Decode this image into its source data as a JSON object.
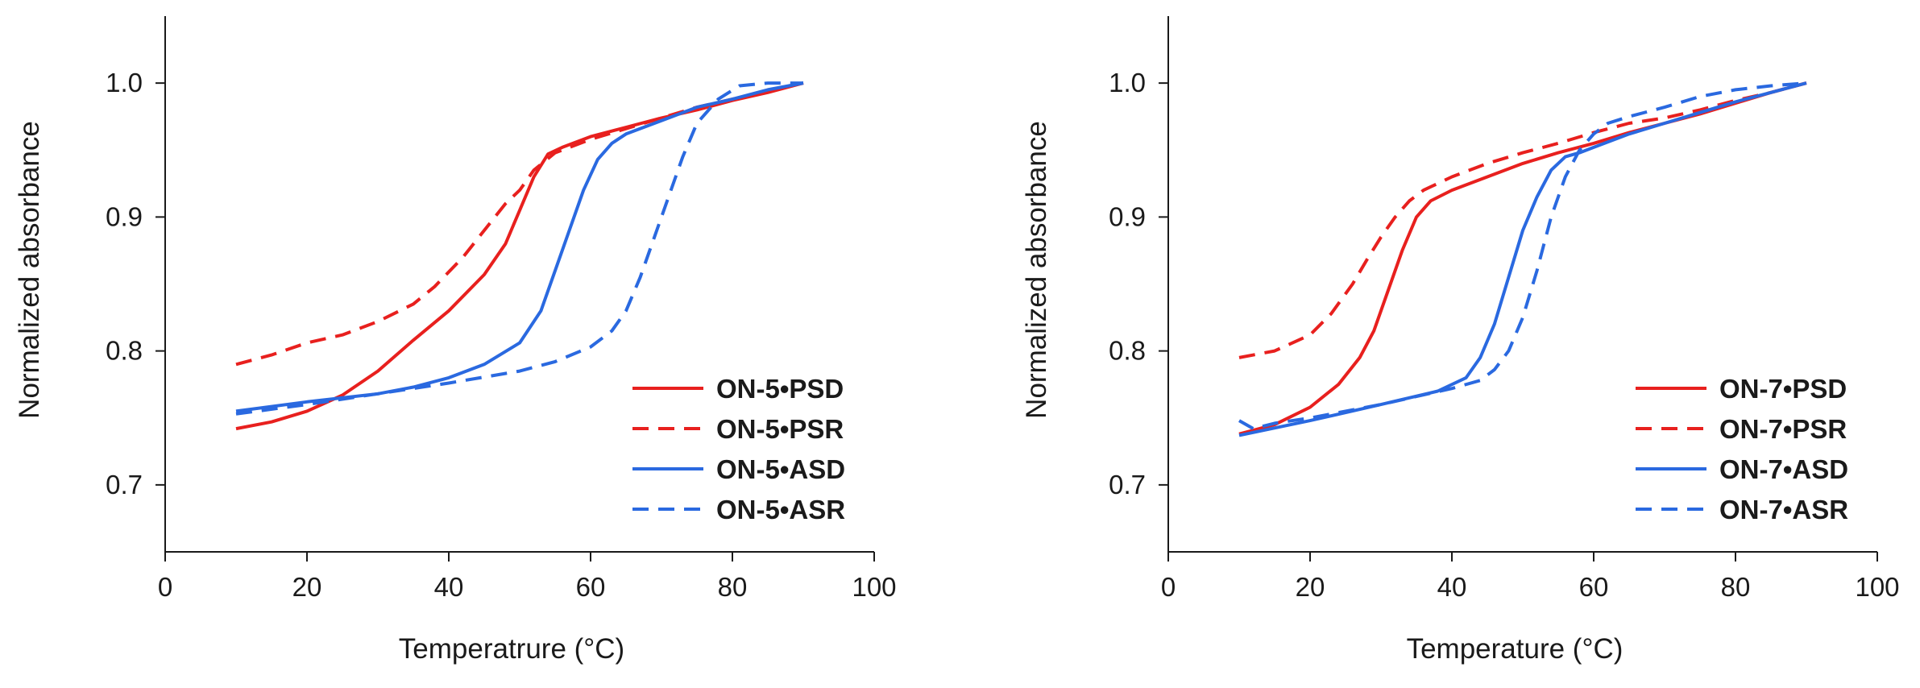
{
  "chart_data": [
    {
      "type": "line",
      "panel": "left",
      "title": "",
      "xlabel": "Temperatrure (°C)",
      "ylabel": "Normalized absorbance",
      "xlim": [
        0,
        100
      ],
      "ylim": [
        0.65,
        1.05
      ],
      "xticks": [
        0,
        20,
        40,
        60,
        80,
        100
      ],
      "xtick_labels": [
        "0",
        "20",
        "40",
        "60",
        "80",
        "100"
      ],
      "yticks": [
        0.7,
        0.8,
        0.9,
        1.0
      ],
      "ytick_labels": [
        "0.7",
        "0.8",
        "0.9",
        "1.0"
      ],
      "grid": false,
      "legend_position": "bottom-right",
      "series": [
        {
          "name": "ON-5•PSD",
          "color": "#e8201e",
          "dash": "solid",
          "x": [
            10,
            15,
            20,
            25,
            30,
            35,
            40,
            45,
            48,
            50,
            52,
            54,
            56,
            60,
            65,
            70,
            75,
            80,
            85,
            90
          ],
          "y": [
            0.742,
            0.747,
            0.755,
            0.767,
            0.785,
            0.808,
            0.83,
            0.857,
            0.88,
            0.905,
            0.93,
            0.947,
            0.952,
            0.96,
            0.967,
            0.974,
            0.98,
            0.987,
            0.993,
            1.0
          ]
        },
        {
          "name": "ON-5•PSR",
          "color": "#e8201e",
          "dash": "dashed",
          "x": [
            10,
            15,
            20,
            25,
            30,
            35,
            38,
            42,
            45,
            48,
            50,
            52,
            55,
            60,
            65,
            70,
            75,
            80,
            85,
            90
          ],
          "y": [
            0.79,
            0.797,
            0.806,
            0.812,
            0.822,
            0.835,
            0.848,
            0.87,
            0.89,
            0.91,
            0.92,
            0.935,
            0.948,
            0.958,
            0.966,
            0.974,
            0.982,
            0.988,
            0.994,
            1.0
          ]
        },
        {
          "name": "ON-5•ASD",
          "color": "#2a69e0",
          "dash": "solid",
          "x": [
            10,
            20,
            30,
            35,
            40,
            45,
            50,
            53,
            55,
            57,
            59,
            61,
            63,
            65,
            70,
            75,
            80,
            85,
            90
          ],
          "y": [
            0.755,
            0.762,
            0.768,
            0.773,
            0.78,
            0.79,
            0.806,
            0.83,
            0.86,
            0.89,
            0.92,
            0.943,
            0.955,
            0.962,
            0.972,
            0.982,
            0.988,
            0.995,
            1.0
          ]
        },
        {
          "name": "ON-5•ASR",
          "color": "#2a69e0",
          "dash": "dashed",
          "x": [
            10,
            20,
            30,
            40,
            50,
            55,
            60,
            63,
            65,
            67,
            69,
            71,
            73,
            75,
            78,
            81,
            85,
            90
          ],
          "y": [
            0.753,
            0.76,
            0.768,
            0.776,
            0.785,
            0.792,
            0.803,
            0.815,
            0.83,
            0.855,
            0.885,
            0.915,
            0.945,
            0.97,
            0.988,
            0.998,
            1.0,
            1.0
          ]
        }
      ]
    },
    {
      "type": "line",
      "panel": "right",
      "title": "",
      "xlabel": "Temperature (°C)",
      "ylabel": "Normalized absorbance",
      "xlim": [
        0,
        100
      ],
      "ylim": [
        0.65,
        1.05
      ],
      "xticks": [
        0,
        20,
        40,
        60,
        80,
        100
      ],
      "xtick_labels": [
        "0",
        "20",
        "40",
        "60",
        "80",
        "100"
      ],
      "yticks": [
        0.7,
        0.8,
        0.9,
        1.0
      ],
      "ytick_labels": [
        "0.7",
        "0.8",
        "0.9",
        "1.0"
      ],
      "grid": false,
      "legend_position": "bottom-right",
      "series": [
        {
          "name": "ON-7•PSD",
          "color": "#e8201e",
          "dash": "solid",
          "x": [
            10,
            15,
            20,
            24,
            27,
            29,
            31,
            33,
            35,
            37,
            40,
            45,
            50,
            55,
            60,
            65,
            70,
            75,
            80,
            85,
            90
          ],
          "y": [
            0.738,
            0.745,
            0.758,
            0.775,
            0.795,
            0.815,
            0.845,
            0.875,
            0.9,
            0.912,
            0.92,
            0.93,
            0.94,
            0.948,
            0.955,
            0.963,
            0.97,
            0.977,
            0.985,
            0.993,
            1.0
          ]
        },
        {
          "name": "ON-7•PSR",
          "color": "#e8201e",
          "dash": "dashed",
          "x": [
            10,
            15,
            20,
            23,
            26,
            28,
            30,
            32,
            34,
            36,
            40,
            45,
            50,
            55,
            60,
            65,
            70,
            75,
            80,
            85,
            90
          ],
          "y": [
            0.795,
            0.8,
            0.812,
            0.828,
            0.85,
            0.868,
            0.885,
            0.9,
            0.912,
            0.92,
            0.93,
            0.94,
            0.948,
            0.955,
            0.963,
            0.97,
            0.974,
            0.98,
            0.987,
            0.993,
            1.0
          ]
        },
        {
          "name": "ON-7•ASD",
          "color": "#2a69e0",
          "dash": "solid",
          "x": [
            10,
            20,
            30,
            38,
            42,
            44,
            46,
            48,
            50,
            52,
            54,
            56,
            58,
            60,
            65,
            70,
            75,
            80,
            85,
            90
          ],
          "y": [
            0.737,
            0.748,
            0.76,
            0.77,
            0.78,
            0.795,
            0.82,
            0.855,
            0.89,
            0.915,
            0.935,
            0.945,
            0.948,
            0.952,
            0.962,
            0.97,
            0.978,
            0.986,
            0.993,
            1.0
          ]
        },
        {
          "name": "ON-7•ASR",
          "color": "#2a69e0",
          "dash": "dashed",
          "x": [
            10,
            12,
            15,
            20,
            30,
            40,
            44,
            46,
            48,
            50,
            52,
            54,
            56,
            58,
            60,
            62,
            65,
            70,
            75,
            80,
            85,
            90
          ],
          "y": [
            0.748,
            0.742,
            0.746,
            0.75,
            0.76,
            0.772,
            0.778,
            0.786,
            0.8,
            0.825,
            0.86,
            0.9,
            0.93,
            0.95,
            0.962,
            0.97,
            0.975,
            0.982,
            0.99,
            0.995,
            0.998,
            1.0
          ]
        }
      ]
    }
  ]
}
